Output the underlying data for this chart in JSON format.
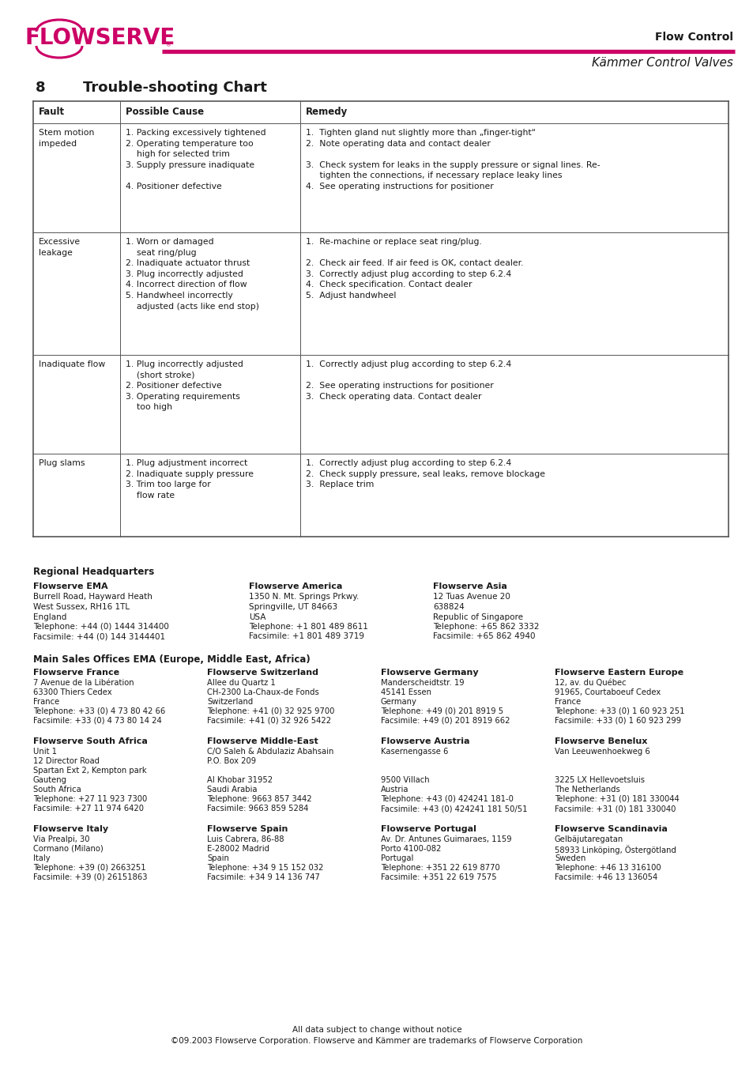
{
  "title_section_num": "8",
  "title_section_text": "Trouble-shooting Chart",
  "header_row": [
    "Fault",
    "Possible Cause",
    "Remedy"
  ],
  "rows": [
    {
      "fault": "Stem motion\nimpeded",
      "causes": "1. Packing excessively tightened\n2. Operating temperature too\n    high for selected trim\n3. Supply pressure inadiquate\n\n4. Positioner defective",
      "remedies": "1.  Tighten gland nut slightly more than „finger-tight“\n2.  Note operating data and contact dealer\n\n3.  Check system for leaks in the supply pressure or signal lines. Re-\n     tighten the connections, if necessary replace leaky lines\n4.  See operating instructions for positioner"
    },
    {
      "fault": "Excessive\nleakage",
      "causes": "1. Worn or damaged\n    seat ring/plug\n2. Inadiquate actuator thrust\n3. Plug incorrectly adjusted\n4. Incorrect direction of flow\n5. Handwheel incorrectly\n    adjusted (acts like end stop)",
      "remedies": "1.  Re-machine or replace seat ring/plug.\n\n2.  Check air feed. If air feed is OK, contact dealer.\n3.  Correctly adjust plug according to step 6.2.4\n4.  Check specification. Contact dealer\n5.  Adjust handwheel"
    },
    {
      "fault": "Inadiquate flow",
      "causes": "1. Plug incorrectly adjusted\n    (short stroke)\n2. Positioner defective\n3. Operating requirements\n    too high",
      "remedies": "1.  Correctly adjust plug according to step 6.2.4\n\n2.  See operating instructions for positioner\n3.  Check operating data. Contact dealer"
    },
    {
      "fault": "Plug slams",
      "causes": "1. Plug adjustment incorrect\n2. Inadiquate supply pressure\n3. Trim too large for\n    flow rate",
      "remedies": "1.  Correctly adjust plug according to step 6.2.4\n2.  Check supply pressure, seal leaks, remove blockage\n3.  Replace trim"
    }
  ],
  "regional_hq_title": "Regional Headquarters",
  "hq_sections": [
    {
      "name": "Flowserve EMA",
      "lines": [
        "Burrell Road, Hayward Heath",
        "West Sussex, RH16 1TL",
        "England",
        "Telephone: +44 (0) 1444 314400",
        "Facsimile: +44 (0) 144 3144401"
      ]
    },
    {
      "name": "Flowserve America",
      "lines": [
        "1350 N. Mt. Springs Prkwy.",
        "Springville, UT 84663",
        "USA",
        "Telephone: +1 801 489 8611",
        "Facsimile: +1 801 489 3719"
      ]
    },
    {
      "name": "Flowserve Asia",
      "lines": [
        "12 Tuas Avenue 20",
        "638824",
        "Republic of Singapore",
        "Telephone: +65 862 3332",
        "Facsimile: +65 862 4940"
      ]
    }
  ],
  "main_sales_title": "Main Sales Offices EMA (Europe, Middle East, Africa)",
  "sales_offices": [
    {
      "name": "Flowserve France",
      "lines": [
        "7 Avenue de la Libération",
        "63300 Thiers Cedex",
        "France",
        "Telephone: +33 (0) 4 73 80 42 66",
        "Facsimile: +33 (0) 4 73 80 14 24"
      ]
    },
    {
      "name": "Flowserve Switzerland",
      "lines": [
        "Allee du Quartz 1",
        "CH-2300 La-Chaux-de Fonds",
        "Switzerland",
        "Telephone: +41 (0) 32 925 9700",
        "Facsimile: +41 (0) 32 926 5422"
      ]
    },
    {
      "name": "Flowserve Germany",
      "lines": [
        "Manderscheidtstr. 19",
        "45141 Essen",
        "Germany",
        "Telephone: +49 (0) 201 8919 5",
        "Facsimile: +49 (0) 201 8919 662"
      ]
    },
    {
      "name": "Flowserve Eastern Europe",
      "lines": [
        "12, av. du Québec",
        "91965, Courtaboeuf Cedex",
        "France",
        "Telephone: +33 (0) 1 60 923 251",
        "Facsimile: +33 (0) 1 60 923 299"
      ]
    },
    {
      "name": "Flowserve South Africa",
      "lines": [
        "Unit 1",
        "12 Director Road",
        "Spartan Ext 2, Kempton park",
        "Gauteng",
        "South Africa",
        "Telephone: +27 11 923 7300",
        "Facsimile: +27 11 974 6420"
      ]
    },
    {
      "name": "Flowserve Middle-East",
      "lines": [
        "C/O Saleh & Abdulaziz Abahsain",
        "P.O. Box 209",
        "",
        "Al Khobar 31952",
        "Saudi Arabia",
        "Telephone: 9663 857 3442",
        "Facsimile: 9663 859 5284"
      ]
    },
    {
      "name": "Flowserve Austria",
      "lines": [
        "Kasernengasse 6",
        "",
        "",
        "9500 Villach",
        "Austria",
        "Telephone: +43 (0) 424241 181-0",
        "Facsimile: +43 (0) 424241 181 50/51"
      ]
    },
    {
      "name": "Flowserve Benelux",
      "lines": [
        "Van Leeuwenhoekweg 6",
        "",
        "",
        "3225 LX Hellevoetsluis",
        "The Netherlands",
        "Telephone: +31 (0) 181 330044",
        "Facsimile: +31 (0) 181 330040"
      ]
    },
    {
      "name": "Flowserve Italy",
      "lines": [
        "Via Prealpi, 30",
        "Cormano (Milano)",
        "Italy",
        "Telephone: +39 (0) 2663251",
        "Facsimile: +39 (0) 26151863"
      ]
    },
    {
      "name": "Flowserve Spain",
      "lines": [
        "Luis Cabrera, 86-88",
        "E-28002 Madrid",
        "Spain",
        "Telephone: +34 9 15 152 032",
        "Facsimile: +34 9 14 136 747"
      ]
    },
    {
      "name": "Flowserve Portugal",
      "lines": [
        "Av. Dr. Antunes Guimaraes, 1159",
        "Porto 4100-082",
        "Portugal",
        "Telephone: +351 22 619 8770",
        "Facsimile: +351 22 619 7575"
      ]
    },
    {
      "name": "Flowserve Scandinavia",
      "lines": [
        "Gelbäjutaregatan",
        "58933 Linköping, Östergötland",
        "Sweden",
        "Telephone: +46 13 316100",
        "Facsimile: +46 13 136054"
      ]
    }
  ],
  "footer_line1": "All data subject to change without notice",
  "footer_line2": "©09.2003 Flowserve Corporation. Flowserve and Kämmer are trademarks of Flowserve Corporation",
  "flowserve_color": "#CC0066",
  "text_color": "#1a1a1a",
  "table_line_color": "#555555"
}
